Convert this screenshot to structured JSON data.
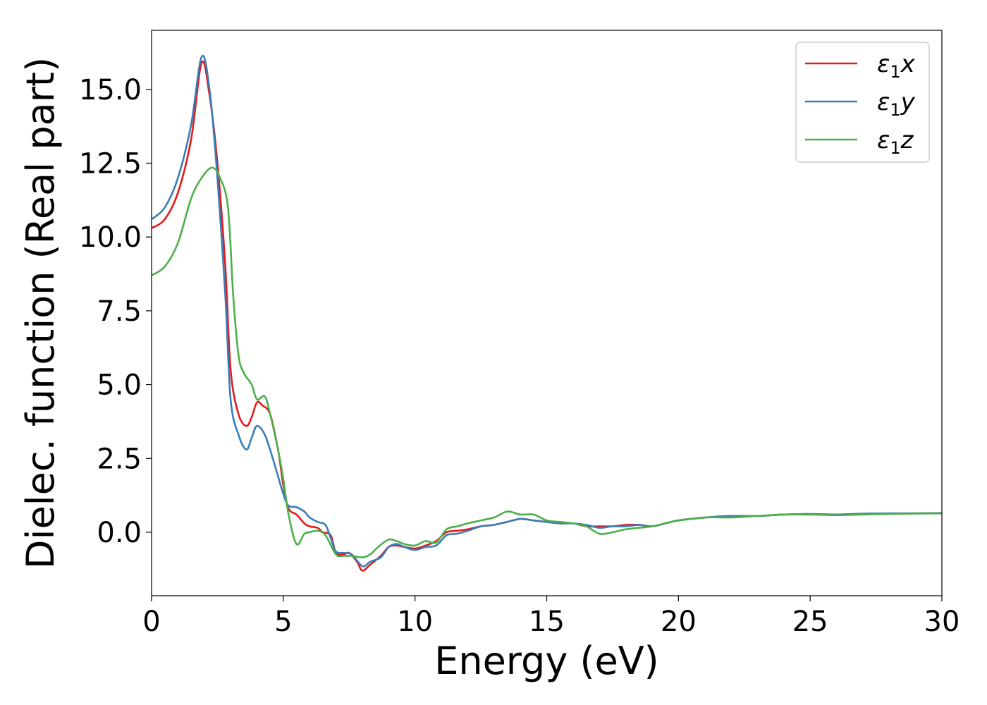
{
  "chart_data": {
    "type": "line",
    "title": "",
    "xlabel": "Energy (eV)",
    "ylabel": "Dielec. function (Real part)",
    "xlim": [
      0,
      30
    ],
    "ylim": [
      -2.15,
      17.0
    ],
    "x_ticks": [
      0,
      5,
      10,
      15,
      20,
      25,
      30
    ],
    "x_tick_labels": [
      "0",
      "5",
      "10",
      "15",
      "20",
      "25",
      "30"
    ],
    "y_ticks": [
      0.0,
      2.5,
      5.0,
      7.5,
      10.0,
      12.5,
      15.0
    ],
    "y_tick_labels": [
      "0.0",
      "2.5",
      "5.0",
      "7.5",
      "10.0",
      "12.5",
      "15.0"
    ],
    "grid": false,
    "legend_position": "top-right",
    "series": [
      {
        "name": "ε₁x",
        "legend_base": "ε",
        "legend_sub": "1",
        "legend_var": "x",
        "color": "#e41a1c",
        "points": [
          [
            0,
            10.3
          ],
          [
            0.5,
            10.6
          ],
          [
            1.0,
            11.5
          ],
          [
            1.5,
            13.3
          ],
          [
            1.9,
            15.9
          ],
          [
            2.2,
            14.8
          ],
          [
            2.5,
            12.5
          ],
          [
            2.8,
            9.0
          ],
          [
            3.0,
            5.5
          ],
          [
            3.3,
            4.0
          ],
          [
            3.6,
            3.6
          ],
          [
            3.8,
            3.9
          ],
          [
            4.0,
            4.4
          ],
          [
            4.2,
            4.3
          ],
          [
            4.5,
            4.0
          ],
          [
            4.8,
            2.8
          ],
          [
            5.0,
            1.6
          ],
          [
            5.2,
            0.8
          ],
          [
            5.5,
            0.6
          ],
          [
            5.8,
            0.3
          ],
          [
            6.0,
            0.2
          ],
          [
            6.3,
            0.15
          ],
          [
            6.5,
            0.0
          ],
          [
            6.8,
            -0.1
          ],
          [
            7.0,
            -0.7
          ],
          [
            7.3,
            -0.75
          ],
          [
            7.5,
            -0.7
          ],
          [
            7.8,
            -1.0
          ],
          [
            8.0,
            -1.3
          ],
          [
            8.3,
            -1.1
          ],
          [
            8.7,
            -0.8
          ],
          [
            9.0,
            -0.5
          ],
          [
            9.3,
            -0.45
          ],
          [
            9.6,
            -0.5
          ],
          [
            10.0,
            -0.55
          ],
          [
            10.4,
            -0.45
          ],
          [
            10.8,
            -0.3
          ],
          [
            11.2,
            0.0
          ],
          [
            11.6,
            0.05
          ],
          [
            12.0,
            0.1
          ],
          [
            12.5,
            0.2
          ],
          [
            13.0,
            0.25
          ],
          [
            13.5,
            0.35
          ],
          [
            14.0,
            0.45
          ],
          [
            14.5,
            0.4
          ],
          [
            15.0,
            0.35
          ],
          [
            15.5,
            0.3
          ],
          [
            16.0,
            0.3
          ],
          [
            16.5,
            0.2
          ],
          [
            17.0,
            0.2
          ],
          [
            17.5,
            0.2
          ],
          [
            18.0,
            0.25
          ],
          [
            18.5,
            0.25
          ],
          [
            19.0,
            0.2
          ],
          [
            19.5,
            0.3
          ],
          [
            20.0,
            0.4
          ],
          [
            21.0,
            0.5
          ],
          [
            22.0,
            0.55
          ],
          [
            23.0,
            0.55
          ],
          [
            24.0,
            0.6
          ],
          [
            25.0,
            0.6
          ],
          [
            26.0,
            0.6
          ],
          [
            27.0,
            0.62
          ],
          [
            28.0,
            0.63
          ],
          [
            29.0,
            0.64
          ],
          [
            30.0,
            0.65
          ]
        ]
      },
      {
        "name": "ε₁y",
        "legend_base": "ε",
        "legend_sub": "1",
        "legend_var": "y",
        "color": "#377eb8",
        "points": [
          [
            0,
            10.6
          ],
          [
            0.5,
            11.0
          ],
          [
            1.0,
            12.0
          ],
          [
            1.5,
            13.8
          ],
          [
            1.9,
            16.1
          ],
          [
            2.2,
            15.0
          ],
          [
            2.5,
            12.0
          ],
          [
            2.8,
            8.0
          ],
          [
            3.0,
            4.5
          ],
          [
            3.3,
            3.3
          ],
          [
            3.6,
            2.8
          ],
          [
            3.8,
            3.2
          ],
          [
            4.0,
            3.6
          ],
          [
            4.3,
            3.3
          ],
          [
            4.6,
            2.5
          ],
          [
            5.0,
            1.3
          ],
          [
            5.2,
            0.9
          ],
          [
            5.5,
            0.85
          ],
          [
            5.8,
            0.7
          ],
          [
            6.0,
            0.5
          ],
          [
            6.3,
            0.35
          ],
          [
            6.6,
            0.25
          ],
          [
            6.8,
            -0.2
          ],
          [
            7.0,
            -0.65
          ],
          [
            7.3,
            -0.7
          ],
          [
            7.6,
            -0.75
          ],
          [
            8.0,
            -1.15
          ],
          [
            8.3,
            -1.0
          ],
          [
            8.7,
            -0.85
          ],
          [
            9.0,
            -0.5
          ],
          [
            9.3,
            -0.4
          ],
          [
            9.6,
            -0.5
          ],
          [
            10.0,
            -0.6
          ],
          [
            10.4,
            -0.5
          ],
          [
            10.8,
            -0.45
          ],
          [
            11.2,
            -0.1
          ],
          [
            11.6,
            -0.05
          ],
          [
            12.0,
            0.05
          ],
          [
            12.5,
            0.2
          ],
          [
            13.0,
            0.25
          ],
          [
            13.5,
            0.35
          ],
          [
            14.0,
            0.45
          ],
          [
            14.5,
            0.4
          ],
          [
            15.0,
            0.35
          ],
          [
            15.5,
            0.3
          ],
          [
            16.0,
            0.3
          ],
          [
            16.5,
            0.25
          ],
          [
            17.0,
            0.15
          ],
          [
            17.5,
            0.2
          ],
          [
            18.0,
            0.2
          ],
          [
            18.5,
            0.25
          ],
          [
            19.0,
            0.2
          ],
          [
            19.5,
            0.3
          ],
          [
            20.0,
            0.4
          ],
          [
            21.0,
            0.5
          ],
          [
            22.0,
            0.55
          ],
          [
            23.0,
            0.55
          ],
          [
            24.0,
            0.6
          ],
          [
            25.0,
            0.62
          ],
          [
            26.0,
            0.6
          ],
          [
            27.0,
            0.63
          ],
          [
            28.0,
            0.64
          ],
          [
            29.0,
            0.64
          ],
          [
            30.0,
            0.65
          ]
        ]
      },
      {
        "name": "ε₁z",
        "legend_base": "ε",
        "legend_sub": "1",
        "legend_var": "z",
        "color": "#4daf4a",
        "points": [
          [
            0,
            8.7
          ],
          [
            0.5,
            9.0
          ],
          [
            1.0,
            9.8
          ],
          [
            1.5,
            11.3
          ],
          [
            1.9,
            12.0
          ],
          [
            2.3,
            12.35
          ],
          [
            2.6,
            12.0
          ],
          [
            2.9,
            11.0
          ],
          [
            3.1,
            8.0
          ],
          [
            3.3,
            6.0
          ],
          [
            3.5,
            5.4
          ],
          [
            3.8,
            5.0
          ],
          [
            4.0,
            4.5
          ],
          [
            4.3,
            4.6
          ],
          [
            4.5,
            4.0
          ],
          [
            4.8,
            2.8
          ],
          [
            5.0,
            1.8
          ],
          [
            5.2,
            0.6
          ],
          [
            5.5,
            -0.4
          ],
          [
            5.8,
            -0.05
          ],
          [
            6.0,
            0.0
          ],
          [
            6.3,
            0.05
          ],
          [
            6.6,
            -0.1
          ],
          [
            7.0,
            -0.75
          ],
          [
            7.3,
            -0.8
          ],
          [
            7.6,
            -0.8
          ],
          [
            8.0,
            -0.85
          ],
          [
            8.3,
            -0.75
          ],
          [
            8.6,
            -0.5
          ],
          [
            9.0,
            -0.25
          ],
          [
            9.3,
            -0.3
          ],
          [
            9.6,
            -0.4
          ],
          [
            10.0,
            -0.45
          ],
          [
            10.4,
            -0.3
          ],
          [
            10.8,
            -0.35
          ],
          [
            11.2,
            0.1
          ],
          [
            11.6,
            0.2
          ],
          [
            12.0,
            0.3
          ],
          [
            12.5,
            0.4
          ],
          [
            13.0,
            0.5
          ],
          [
            13.5,
            0.7
          ],
          [
            14.0,
            0.6
          ],
          [
            14.5,
            0.6
          ],
          [
            15.0,
            0.4
          ],
          [
            15.5,
            0.35
          ],
          [
            16.0,
            0.3
          ],
          [
            16.5,
            0.2
          ],
          [
            17.0,
            -0.05
          ],
          [
            17.5,
            0.0
          ],
          [
            18.0,
            0.1
          ],
          [
            18.5,
            0.15
          ],
          [
            19.0,
            0.2
          ],
          [
            19.5,
            0.3
          ],
          [
            20.0,
            0.4
          ],
          [
            21.0,
            0.5
          ],
          [
            22.0,
            0.5
          ],
          [
            23.0,
            0.55
          ],
          [
            24.0,
            0.6
          ],
          [
            25.0,
            0.6
          ],
          [
            26.0,
            0.58
          ],
          [
            27.0,
            0.6
          ],
          [
            28.0,
            0.62
          ],
          [
            29.0,
            0.63
          ],
          [
            30.0,
            0.64
          ]
        ]
      }
    ]
  }
}
